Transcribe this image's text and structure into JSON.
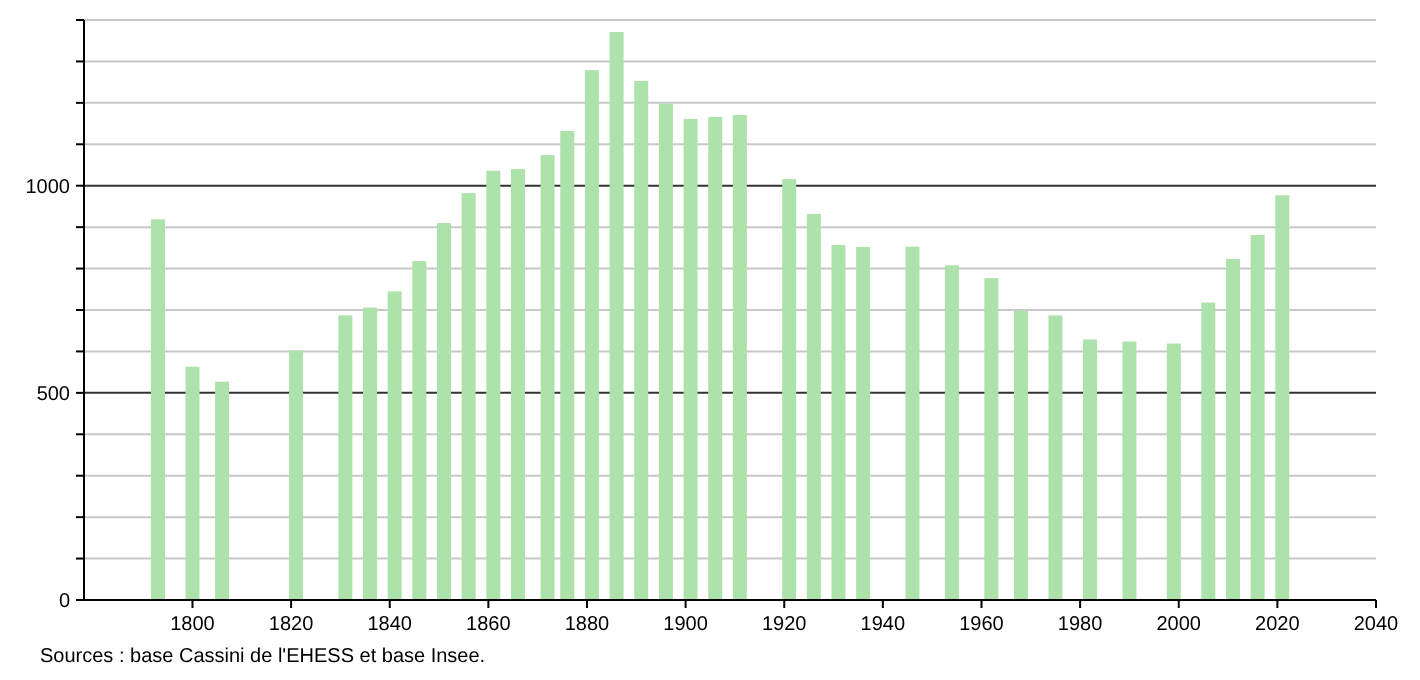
{
  "chart_data": {
    "type": "bar",
    "x": [
      1793,
      1800,
      1806,
      1821,
      1831,
      1836,
      1841,
      1846,
      1851,
      1856,
      1861,
      1866,
      1872,
      1876,
      1881,
      1886,
      1891,
      1896,
      1901,
      1906,
      1911,
      1921,
      1926,
      1931,
      1936,
      1946,
      1954,
      1962,
      1968,
      1975,
      1982,
      1990,
      1999,
      2006,
      2011,
      2016,
      2021
    ],
    "values": [
      919,
      563,
      527,
      602,
      687,
      706,
      745,
      818,
      910,
      982,
      1036,
      1040,
      1074,
      1132,
      1279,
      1371,
      1253,
      1198,
      1161,
      1166,
      1171,
      1016,
      932,
      857,
      852,
      853,
      808,
      777,
      698,
      687,
      629,
      624,
      619,
      718,
      823,
      881,
      977
    ],
    "color": "#ade3ab",
    "xlim": [
      1778,
      2040
    ],
    "xticks": [
      1800,
      1820,
      1840,
      1860,
      1880,
      1900,
      1920,
      1940,
      1960,
      1980,
      2000,
      2020,
      2040
    ],
    "ylim": [
      0,
      1400
    ],
    "yticks": [
      0,
      {
        "value": 100,
        "label": null
      },
      {
        "value": 200,
        "label": null
      },
      {
        "value": 300,
        "label": null
      },
      {
        "value": 400,
        "label": null
      },
      500,
      {
        "value": 600,
        "label": null
      },
      {
        "value": 700,
        "label": null
      },
      {
        "value": 800,
        "label": null
      },
      {
        "value": 900,
        "label": null
      },
      1000,
      {
        "value": 1100,
        "label": null
      },
      {
        "value": 1200,
        "label": null
      },
      {
        "value": 1300,
        "label": null
      },
      {
        "value": 1400,
        "label": null
      }
    ],
    "grid": true,
    "annotations": [
      "Sources : base Cassini de l'EHESS et base Insee."
    ]
  }
}
